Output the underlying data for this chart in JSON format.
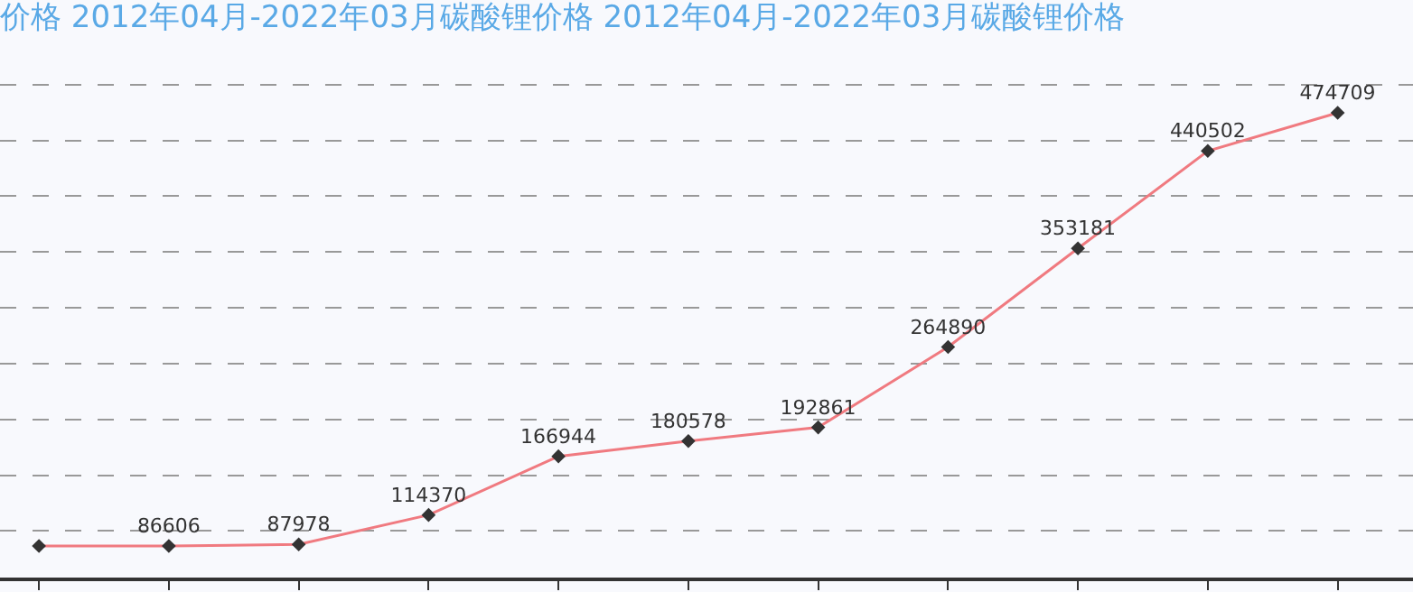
{
  "chart_data": {
    "type": "line",
    "title": "价格 2012年04月-2022年03月碳酸锂价格 2012年04月-2022年03月碳酸锂价格",
    "categories": [
      null,
      null,
      null,
      null,
      null,
      null,
      null,
      null,
      null,
      null,
      null
    ],
    "series": [
      {
        "color": "#f07a80",
        "values": [
          86600,
          86606,
          87978,
          114370,
          166944,
          180578,
          192861,
          264890,
          353181,
          440502,
          474709
        ],
        "value_labels": [
          null,
          "86606",
          "87978",
          "114370",
          "166944",
          "180578",
          "192861",
          "264890",
          "353181",
          "440502",
          "474709"
        ]
      }
    ],
    "grid": "y",
    "marker": "diamond",
    "line_style": "solid",
    "tick_labels": false
  }
}
